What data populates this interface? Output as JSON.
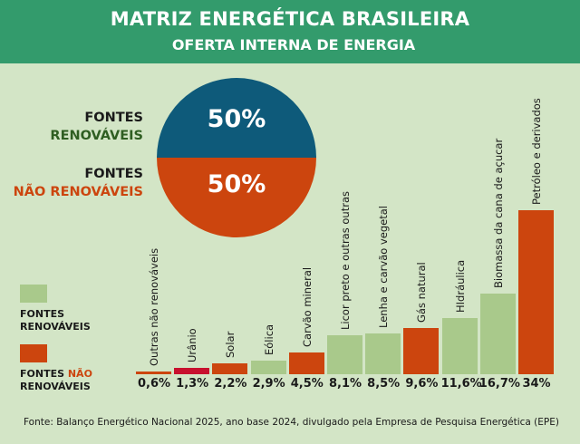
{
  "header": {
    "title": "MATRIZ ENERGÉTICA BRASILEIRA",
    "subtitle": "OFERTA INTERNA DE ENERGIA"
  },
  "pie": {
    "renewable": {
      "label_line1": "FONTES",
      "label_line2": "RENOVÁVEIS",
      "value": "50%",
      "color": "#0e5a7a"
    },
    "non_renewable": {
      "label_line1": "FONTES",
      "label_line2": "NÃO RENOVÁVEIS",
      "value": "50%",
      "color": "#cc450e"
    }
  },
  "legend": {
    "renewable": {
      "line1": "FONTES",
      "line2": "RENOVÁVEIS",
      "color": "#a9c98b"
    },
    "non_renewable": {
      "line1a": "FONTES ",
      "line1b": "NÃO",
      "line2": "RENOVÁVEIS",
      "color": "#cc450e"
    }
  },
  "bars": [
    {
      "label": "Outras não renováveis",
      "value_text": "0,6%",
      "color": "#cc450e"
    },
    {
      "label": "Urânio",
      "value_text": "1,3%",
      "color": "#c8102e"
    },
    {
      "label": "Solar",
      "value_text": "2,2%",
      "color": "#cc450e"
    },
    {
      "label": "Eólica",
      "value_text": "2,9%",
      "color": "#a9c98b"
    },
    {
      "label": "Carvão mineral",
      "value_text": "4,5%",
      "color": "#cc450e"
    },
    {
      "label": "Licor preto e outras outras",
      "value_text": "8,1%",
      "color": "#a9c98b"
    },
    {
      "label": "Lenha e carvão vegetal",
      "value_text": "8,5%",
      "color": "#a9c98b"
    },
    {
      "label": "Gás natural",
      "value_text": "9,6%",
      "color": "#cc450e"
    },
    {
      "label": "HIdráulica",
      "value_text": "11,6%",
      "color": "#a9c98b"
    },
    {
      "label": "Biomassa da cana de açucar",
      "value_text": "16,7%",
      "color": "#a9c98b"
    },
    {
      "label": "Petróleo e derivados",
      "value_text": "34%",
      "color": "#cc450e"
    }
  ],
  "source": "Fonte: Balanço Energético Nacional 2025, ano base 2024, divulgado pela Empresa de Pesquisa Energética (EPE)",
  "chart_data": [
    {
      "type": "pie",
      "title": "Oferta Interna de Energia",
      "categories": [
        "Fontes renováveis",
        "Fontes não renováveis"
      ],
      "values": [
        50,
        50
      ],
      "colors": [
        "#0e5a7a",
        "#cc450e"
      ]
    },
    {
      "type": "bar",
      "title": "Matriz Energética Brasileira",
      "categories": [
        "Outras não renováveis",
        "Urânio",
        "Solar",
        "Eólica",
        "Carvão mineral",
        "Licor preto e outras outras",
        "Lenha e carvão vegetal",
        "Gás natural",
        "Hidráulica",
        "Biomassa da cana de açucar",
        "Petróleo e derivados"
      ],
      "values": [
        0.6,
        1.3,
        2.2,
        2.9,
        4.5,
        8.1,
        8.5,
        9.6,
        11.6,
        16.7,
        34
      ],
      "legend": [
        "Fontes renováveis",
        "Fontes não renováveis"
      ],
      "xlabel": "",
      "ylabel": "%",
      "ylim": [
        0,
        34
      ],
      "grid": false
    }
  ]
}
